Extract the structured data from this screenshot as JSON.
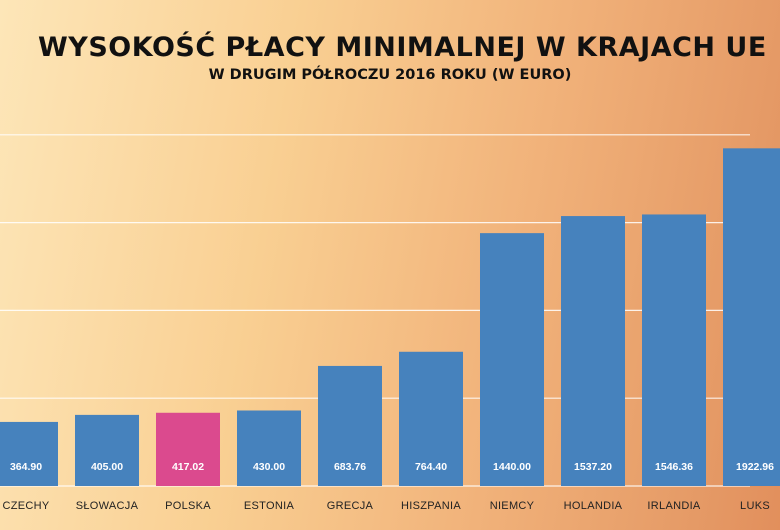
{
  "chart_data": {
    "type": "bar",
    "title": "WYSOKOŚĆ PŁACY MINIMALNEJ W KRAJACH UE",
    "subtitle": "W DRUGIM PÓŁROCZU 2016 ROKU (W EURO)",
    "categories": [
      "CZECHY",
      "SŁOWACJA",
      "POLSKA",
      "ESTONIA",
      "GRECJA",
      "HISZPANIA",
      "NIEMCY",
      "HOLANDIA",
      "IRLANDIA",
      "LUKS"
    ],
    "values": [
      364.9,
      405.0,
      417.02,
      430.0,
      683.76,
      764.4,
      1440.0,
      1537.2,
      1546.36,
      1922.96
    ],
    "value_labels": [
      "364.90",
      "405.00",
      "417.02",
      "430.00",
      "683.76",
      "764.40",
      "1440.00",
      "1537.20",
      "1546.36",
      "1922.96"
    ],
    "highlight_category": "POLSKA",
    "colors": {
      "bar": "#4682bd",
      "highlight": "#db4a8e",
      "grid": "#ffffff"
    },
    "ylim": [
      0,
      2000
    ],
    "grid": true,
    "legend": "none"
  }
}
